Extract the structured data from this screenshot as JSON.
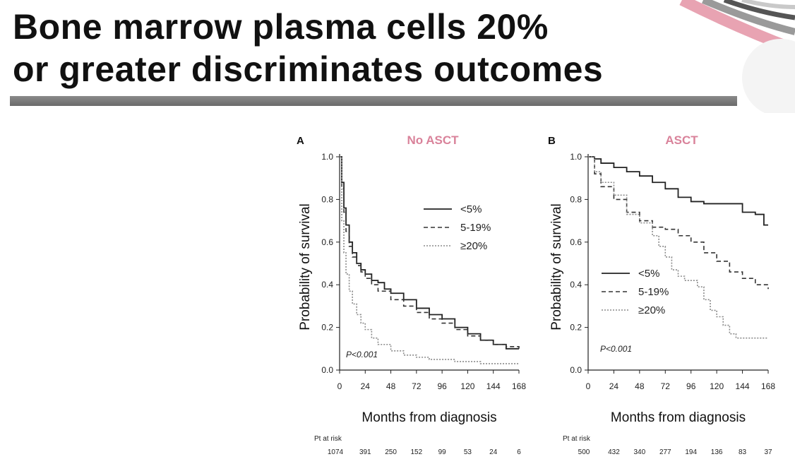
{
  "slide": {
    "title_line1": "Bone marrow plasma cells 20%",
    "title_line2": "or greater discriminates outcomes"
  },
  "colors": {
    "title_bar": "#707070",
    "panel_title": "#d9829a"
  },
  "chart_data": [
    {
      "type": "line",
      "panel": "A",
      "title": "No ASCT",
      "xlabel": "Months from diagnosis",
      "ylabel": "Probability of survival",
      "xlim": [
        0,
        168
      ],
      "ylim": [
        0,
        1
      ],
      "xticks": [
        "0",
        "24",
        "48",
        "72",
        "96",
        "120",
        "144",
        "168"
      ],
      "yticks": [
        "0.0",
        "0.2",
        "0.4",
        "0.6",
        "0.8",
        "1.0"
      ],
      "legend_position": "top-right",
      "annotation": "P<0.001",
      "at_risk_label": "Pt at risk",
      "at_risk": [
        "1074",
        "391",
        "250",
        "152",
        "99",
        "53",
        "24",
        "6"
      ],
      "series": [
        {
          "name": "<5%",
          "style": "solid",
          "x": [
            0,
            2,
            4,
            6,
            9,
            12,
            16,
            20,
            24,
            30,
            36,
            42,
            48,
            60,
            72,
            84,
            96,
            108,
            120,
            132,
            144,
            156,
            168
          ],
          "y": [
            1.0,
            0.88,
            0.76,
            0.68,
            0.6,
            0.55,
            0.5,
            0.47,
            0.45,
            0.42,
            0.41,
            0.38,
            0.36,
            0.33,
            0.29,
            0.26,
            0.24,
            0.2,
            0.17,
            0.14,
            0.12,
            0.1,
            0.1
          ]
        },
        {
          "name": "5-19%",
          "style": "dashed",
          "x": [
            0,
            2,
            4,
            6,
            9,
            12,
            16,
            20,
            24,
            30,
            36,
            48,
            60,
            72,
            84,
            96,
            108,
            120,
            132,
            144,
            156,
            168
          ],
          "y": [
            1.0,
            0.85,
            0.74,
            0.65,
            0.58,
            0.53,
            0.49,
            0.46,
            0.43,
            0.4,
            0.37,
            0.33,
            0.3,
            0.27,
            0.24,
            0.22,
            0.19,
            0.16,
            0.14,
            0.12,
            0.11,
            0.1
          ]
        },
        {
          "name": "≥20%",
          "style": "dotted",
          "x": [
            0,
            2,
            4,
            6,
            9,
            12,
            16,
            20,
            24,
            30,
            36,
            48,
            60,
            72,
            84,
            96,
            108,
            120,
            132,
            144,
            156,
            168
          ],
          "y": [
            1.0,
            0.7,
            0.55,
            0.45,
            0.37,
            0.31,
            0.26,
            0.22,
            0.19,
            0.15,
            0.12,
            0.09,
            0.07,
            0.06,
            0.05,
            0.05,
            0.04,
            0.04,
            0.03,
            0.03,
            0.03,
            0.03
          ]
        }
      ]
    },
    {
      "type": "line",
      "panel": "B",
      "title": "ASCT",
      "xlabel": "Months from diagnosis",
      "ylabel": "Probability of survival",
      "xlim": [
        0,
        168
      ],
      "ylim": [
        0,
        1
      ],
      "xticks": [
        "0",
        "24",
        "48",
        "72",
        "96",
        "120",
        "144",
        "168"
      ],
      "yticks": [
        "0.0",
        "0.2",
        "0.4",
        "0.6",
        "0.8",
        "1.0"
      ],
      "legend_position": "center-left",
      "annotation": "P<0.001",
      "at_risk_label": "Pt at risk",
      "at_risk": [
        "500",
        "432",
        "340",
        "277",
        "194",
        "136",
        "83",
        "37"
      ],
      "series": [
        {
          "name": "<5%",
          "style": "solid",
          "x": [
            0,
            6,
            12,
            24,
            36,
            48,
            60,
            72,
            84,
            96,
            108,
            120,
            132,
            144,
            156,
            164,
            168
          ],
          "y": [
            1.0,
            0.99,
            0.97,
            0.95,
            0.93,
            0.91,
            0.88,
            0.85,
            0.81,
            0.79,
            0.78,
            0.78,
            0.78,
            0.74,
            0.73,
            0.68,
            0.68
          ]
        },
        {
          "name": "5-19%",
          "style": "dashed",
          "x": [
            0,
            6,
            12,
            24,
            36,
            48,
            60,
            72,
            84,
            96,
            108,
            120,
            132,
            144,
            156,
            168
          ],
          "y": [
            1.0,
            0.92,
            0.86,
            0.8,
            0.74,
            0.7,
            0.67,
            0.66,
            0.63,
            0.6,
            0.55,
            0.51,
            0.46,
            0.43,
            0.4,
            0.38
          ]
        },
        {
          "name": "≥20%",
          "style": "dotted",
          "x": [
            0,
            6,
            12,
            24,
            36,
            48,
            60,
            66,
            72,
            78,
            84,
            90,
            96,
            102,
            108,
            114,
            120,
            126,
            132,
            138,
            144,
            156,
            168
          ],
          "y": [
            1.0,
            0.93,
            0.88,
            0.82,
            0.73,
            0.69,
            0.63,
            0.58,
            0.53,
            0.47,
            0.44,
            0.42,
            0.42,
            0.39,
            0.33,
            0.28,
            0.25,
            0.21,
            0.17,
            0.15,
            0.15,
            0.15,
            0.15
          ]
        }
      ]
    }
  ]
}
